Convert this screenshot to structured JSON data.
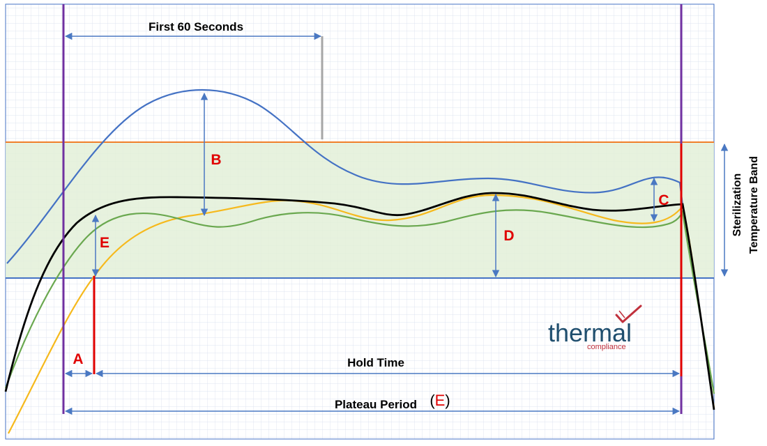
{
  "labels": {
    "first_60": "First 60 Seconds",
    "b": "B",
    "c": "C",
    "d": "D",
    "e": "E",
    "a": "A",
    "hold_time": "Hold Time",
    "plateau": "Plateau Period",
    "plateau_paren_open": "(",
    "plateau_paren_letter": "E",
    "plateau_paren_close": ")",
    "band_line1": "Sterilization",
    "band_line2": "Temperature Band"
  },
  "logo": {
    "word": "thermal",
    "sub": "compliance"
  },
  "colors": {
    "grid": "#c9d3e6",
    "band_fill": "#e3f0d8",
    "band_top": "#f07f2a",
    "band_bottom": "#4472c4",
    "blue_curve": "#4472c4",
    "black_curve": "#000000",
    "green_curve": "#6aa84f",
    "yellow_curve": "#f6b91c",
    "purple": "#7030a0",
    "red": "#e00000",
    "arrow": "#4a78c2",
    "gray": "#a6a6a6",
    "logo_text": "#1f4e6e",
    "logo_red": "#c0303c"
  }
}
